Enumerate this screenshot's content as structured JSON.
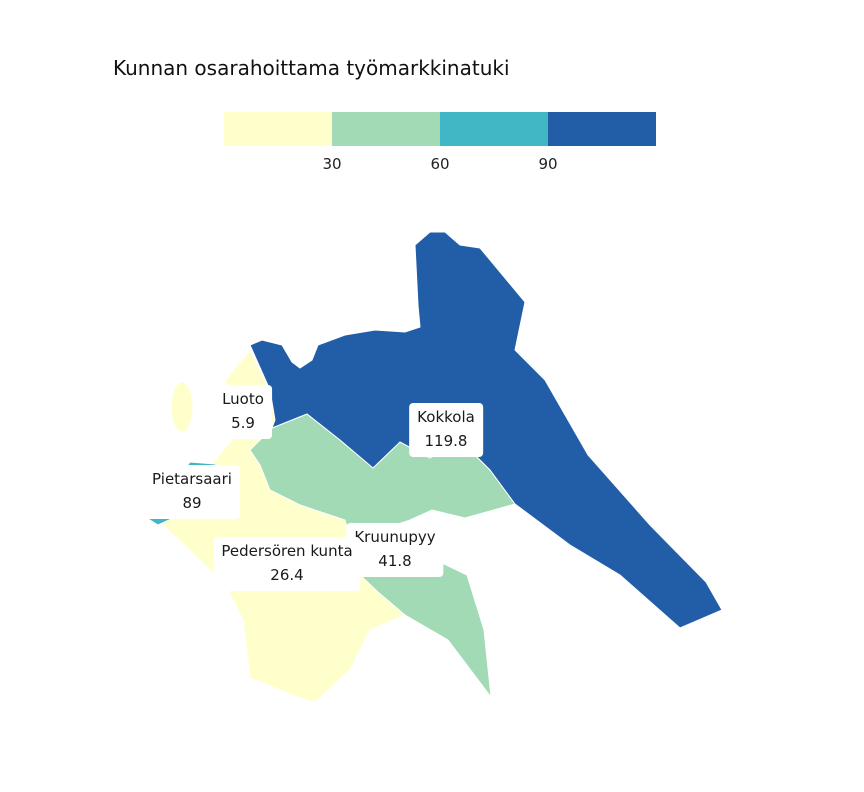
{
  "title": "Kunnan osarahoittama työmarkkinatuki",
  "legend": {
    "colors": [
      "#ffffcc",
      "#a1dab4",
      "#41b6c4",
      "#225ea8"
    ],
    "ticks": [
      "30",
      "60",
      "90"
    ]
  },
  "chart_data": {
    "type": "choropleth",
    "title": "Kunnan osarahoittama työmarkkinatuki",
    "regions": [
      {
        "name": "Kokkola",
        "value": 119.8,
        "value_label": "119.8",
        "color": "#225ea8"
      },
      {
        "name": "Luoto",
        "value": 5.9,
        "value_label": "5.9",
        "color": "#ffffcc"
      },
      {
        "name": "Pietarsaari",
        "value": 89,
        "value_label": "89",
        "color": "#41b6c4"
      },
      {
        "name": "Pedersören kunta",
        "value": 26.4,
        "value_label": "26.4",
        "color": "#ffffcc"
      },
      {
        "name": "Kruunupyy",
        "value": 41.8,
        "value_label": "41.8",
        "color": "#a1dab4"
      }
    ],
    "color_scale": {
      "breaks": [
        30,
        60,
        90
      ],
      "colors": [
        "#ffffcc",
        "#a1dab4",
        "#41b6c4",
        "#225ea8"
      ]
    }
  }
}
